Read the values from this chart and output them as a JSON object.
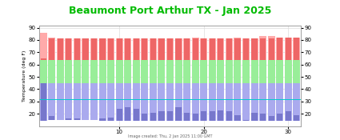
{
  "title": "Beaumont Port Arthur TX - Jan 2025",
  "title_color": "#00bb00",
  "ylabel": "Temperature (deg F)",
  "xlim": [
    0.5,
    31.5
  ],
  "ylim": [
    10,
    92
  ],
  "yticks": [
    20,
    30,
    40,
    50,
    60,
    70,
    80,
    90
  ],
  "xticks": [
    10,
    20,
    30
  ],
  "caption": "Image created: Thu, 2 Jan 2025 11:00 GMT",
  "days": [
    1,
    2,
    3,
    4,
    5,
    6,
    7,
    8,
    9,
    10,
    11,
    12,
    13,
    14,
    15,
    16,
    17,
    18,
    19,
    20,
    21,
    22,
    23,
    24,
    25,
    26,
    27,
    28,
    29,
    30,
    31
  ],
  "record_high": [
    86,
    82,
    81,
    81,
    81,
    81,
    81,
    81,
    81,
    81,
    81,
    81,
    81,
    81,
    81,
    81,
    81,
    81,
    82,
    81,
    81,
    81,
    81,
    82,
    81,
    81,
    83,
    83,
    82,
    82,
    82
  ],
  "normal_high": [
    64,
    64,
    64,
    64,
    64,
    64,
    64,
    64,
    64,
    64,
    64,
    64,
    64,
    64,
    64,
    64,
    64,
    64,
    64,
    64,
    64,
    64,
    64,
    64,
    64,
    64,
    64,
    64,
    64,
    64,
    64
  ],
  "normal_low": [
    45,
    45,
    45,
    45,
    45,
    45,
    45,
    45,
    45,
    45,
    45,
    45,
    45,
    45,
    45,
    45,
    45,
    45,
    45,
    45,
    45,
    45,
    45,
    45,
    45,
    45,
    45,
    45,
    45,
    45,
    45
  ],
  "record_low": [
    14,
    15,
    15,
    15,
    15,
    15,
    15,
    14,
    14,
    14,
    14,
    14,
    14,
    14,
    14,
    14,
    14,
    14,
    14,
    14,
    14,
    14,
    14,
    14,
    14,
    14,
    14,
    14,
    14,
    14,
    14
  ],
  "actual_high": [
    65,
    81,
    81,
    81,
    81,
    81,
    81,
    81,
    81,
    81,
    81,
    81,
    81,
    81,
    82,
    81,
    81,
    81,
    81,
    81,
    81,
    81,
    81,
    81,
    83,
    81,
    81,
    81,
    82,
    82,
    82
  ],
  "actual_low": [
    45,
    18,
    15,
    16,
    16,
    15,
    15,
    16,
    17,
    24,
    25,
    24,
    20,
    21,
    22,
    22,
    25,
    21,
    20,
    22,
    22,
    23,
    22,
    19,
    15,
    21,
    20,
    18,
    20,
    22,
    19
  ],
  "freezing_line": 32,
  "color_record_high_fill": "#ffaaaa",
  "color_record_high_bar": "#ee6666",
  "color_normal_fill": "#99ee99",
  "color_normal_bar": "#44bb44",
  "color_record_low_fill": "#aaaaee",
  "color_record_low_bar": "#7777cc",
  "color_freezing": "#00cccc",
  "bg_color": "#e0e0e0",
  "plot_bg": "#ffffff",
  "grid_color": "#dddddd",
  "bar_width": 0.85
}
